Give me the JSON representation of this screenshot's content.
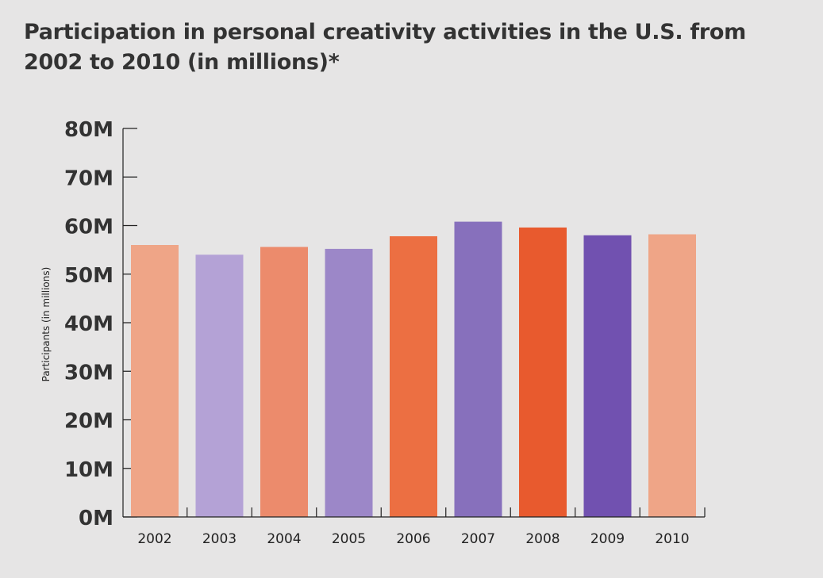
{
  "chart_data": {
    "type": "bar",
    "title": "Participation in personal creativity activities in the U.S. from 2002 to 2010 (in millions)*",
    "xlabel": "",
    "ylabel": "Participants (in millions)",
    "categories": [
      "2002",
      "2003",
      "2004",
      "2005",
      "2006",
      "2007",
      "2008",
      "2009",
      "2010"
    ],
    "values": [
      56,
      54,
      55.6,
      55.2,
      57.8,
      60.8,
      59.6,
      58,
      58.2
    ],
    "ylim": [
      0,
      80
    ],
    "yticks": [
      0,
      10,
      20,
      30,
      40,
      50,
      60,
      70,
      80
    ],
    "ytick_labels": [
      "0M",
      "10M",
      "20M",
      "30M",
      "40M",
      "50M",
      "60M",
      "70M",
      "80M"
    ],
    "colors": [
      "#efa587",
      "#b4a2d6",
      "#ec8b6c",
      "#9c87c8",
      "#ec6f42",
      "#8770bc",
      "#e85a2e",
      "#7151b0",
      "#efa587"
    ],
    "grid": false,
    "legend": "none"
  }
}
